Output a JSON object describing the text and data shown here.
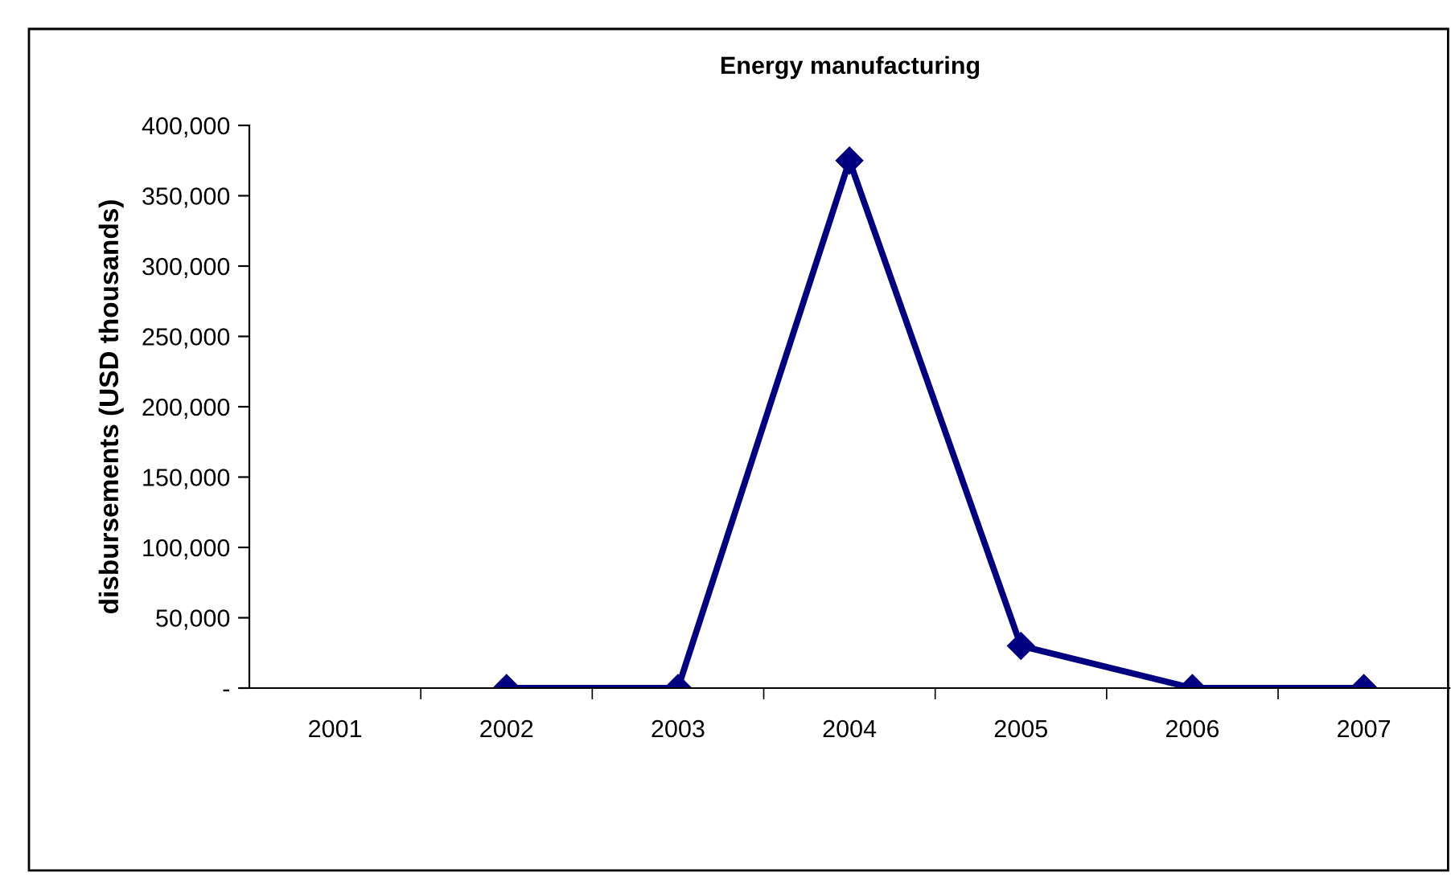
{
  "chart_data": {
    "type": "line",
    "title": "Energy manufacturing",
    "ylabel": "disbursements (USD thousands)",
    "categories": [
      "2001",
      "2002",
      "2003",
      "2004",
      "2005",
      "2006",
      "2007"
    ],
    "series": [
      {
        "color": "#000080",
        "values": [
          null,
          0,
          0,
          375000,
          30000,
          0,
          0
        ]
      }
    ],
    "ylim": [
      0,
      400000
    ],
    "yticks": [
      {
        "value": 0,
        "label": "-"
      },
      {
        "value": 50000,
        "label": "50,000"
      },
      {
        "value": 100000,
        "label": "100,000"
      },
      {
        "value": 150000,
        "label": "150,000"
      },
      {
        "value": 200000,
        "label": "200,000"
      },
      {
        "value": 250000,
        "label": "250,000"
      },
      {
        "value": 300000,
        "label": "300,000"
      },
      {
        "value": 350000,
        "label": "350,000"
      },
      {
        "value": 400000,
        "label": "400,000"
      }
    ],
    "marker": "diamond",
    "line_style": "solid",
    "grid": false,
    "legend": false
  }
}
